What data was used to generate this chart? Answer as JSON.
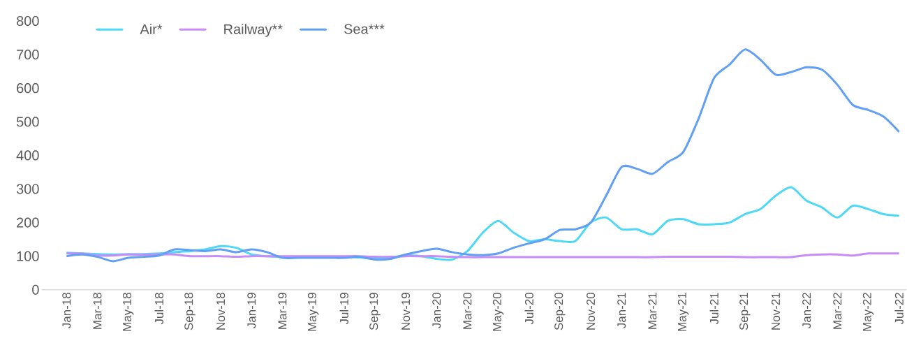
{
  "chart_data": {
    "type": "line",
    "categories": [
      "Jan-18",
      null,
      "Mar-18",
      null,
      "May-18",
      null,
      "Jul-18",
      null,
      "Sep-18",
      null,
      "Nov-18",
      null,
      "Jan-19",
      null,
      "Mar-19",
      null,
      "May-19",
      null,
      "Jul-19",
      null,
      "Sep-19",
      null,
      "Nov-19",
      null,
      "Jan-20",
      null,
      "Mar-20",
      null,
      "May-20",
      null,
      "Jul-20",
      null,
      "Sep-20",
      null,
      "Nov-20",
      null,
      "Jan-21",
      null,
      "Mar-21",
      null,
      "May-21",
      null,
      "Jul-21",
      null,
      "Sep-21",
      null,
      "Nov-21",
      null,
      "Jan-22",
      null,
      "Mar-22",
      null,
      "May-22",
      null,
      "Jul-22"
    ],
    "series": [
      {
        "name": "Air*",
        "color": "#4dd9f5",
        "values": [
          110,
          108,
          106,
          105,
          106,
          106,
          108,
          112,
          115,
          120,
          130,
          125,
          105,
          100,
          98,
          97,
          98,
          98,
          98,
          96,
          93,
          95,
          103,
          100,
          92,
          90,
          115,
          170,
          205,
          170,
          145,
          150,
          145,
          145,
          200,
          215,
          180,
          180,
          165,
          205,
          210,
          195,
          195,
          200,
          225,
          240,
          280,
          305,
          265,
          245,
          215,
          250,
          240,
          225,
          220
        ]
      },
      {
        "name": "Railway**",
        "color": "#c78cf7",
        "values": [
          108,
          108,
          102,
          102,
          105,
          104,
          105,
          105,
          100,
          100,
          100,
          98,
          100,
          100,
          100,
          100,
          100,
          100,
          100,
          100,
          98,
          98,
          100,
          100,
          100,
          98,
          97,
          97,
          97,
          97,
          97,
          97,
          97,
          97,
          97,
          97,
          97,
          97,
          97,
          98,
          98,
          98,
          98,
          98,
          97,
          97,
          97,
          97,
          103,
          105,
          105,
          102,
          108,
          108,
          108
        ]
      },
      {
        "name": "Sea***",
        "color": "#619ff5",
        "values": [
          100,
          105,
          98,
          85,
          95,
          98,
          102,
          120,
          118,
          115,
          120,
          112,
          120,
          112,
          95,
          95,
          95,
          95,
          95,
          98,
          90,
          92,
          105,
          115,
          122,
          112,
          105,
          103,
          108,
          125,
          138,
          150,
          178,
          180,
          200,
          280,
          365,
          360,
          345,
          380,
          410,
          510,
          630,
          670,
          715,
          685,
          640,
          648,
          662,
          655,
          610,
          550,
          535,
          515,
          470
        ]
      }
    ],
    "ylim": [
      0,
      800
    ],
    "yticks": [
      0,
      100,
      200,
      300,
      400,
      500,
      600,
      700,
      800
    ],
    "legend": "top left"
  }
}
